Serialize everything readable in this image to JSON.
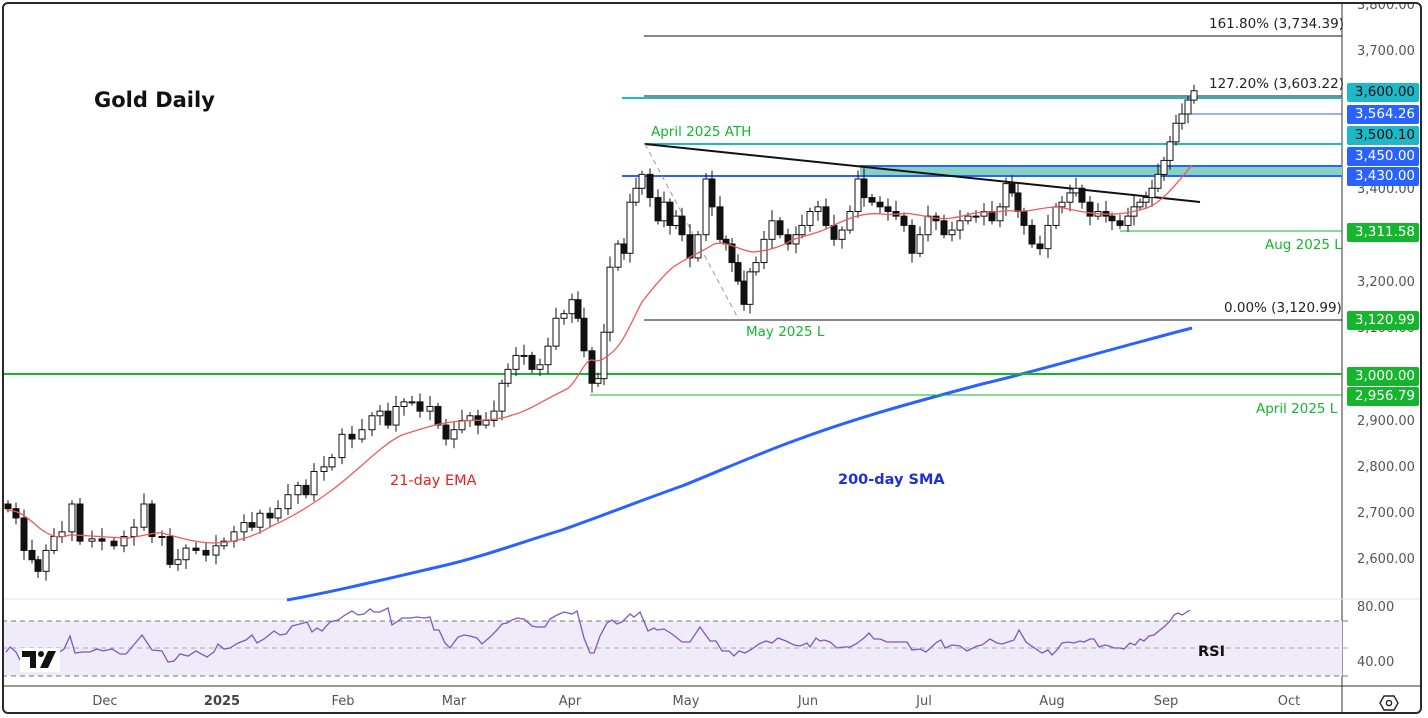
{
  "chart_data": {
    "type": "candlestick",
    "title": "Gold Daily",
    "instrument": "Gold",
    "timeframe": "Daily",
    "x_tick_labels": [
      "Dec",
      "2025",
      "Feb",
      "Mar",
      "Apr",
      "May",
      "Jun",
      "Jul",
      "Aug",
      "Sep",
      "Oct"
    ],
    "price_axis": {
      "ticks": [
        "3,800.00",
        "3,700.00",
        "3,400.00",
        "3,200.00",
        "3,100.00",
        "2,900.00",
        "2,800.00",
        "2,700.00",
        "2,600.00"
      ],
      "ylim": [
        2530,
        3800
      ]
    },
    "rsi_axis": {
      "ticks": [
        "80.00",
        "40.00"
      ],
      "levels": [
        70,
        50,
        30
      ]
    },
    "price_tags": [
      {
        "label": "3,600.00",
        "price": 3600.0,
        "color": "#1fb8c9",
        "text_color": "#111"
      },
      {
        "label": "3,564.26",
        "price": 3564.26,
        "color": "#2962ff",
        "text_color": "#fff"
      },
      {
        "label": "3,500.10",
        "price": 3500.1,
        "color": "#1fb8c9",
        "text_color": "#111"
      },
      {
        "label": "3,450.00",
        "price": 3450.0,
        "color": "#2962ff",
        "text_color": "#fff"
      },
      {
        "label": "3,430.00",
        "price": 3430.0,
        "color": "#2962ff",
        "text_color": "#fff"
      },
      {
        "label": "3,311.58",
        "price": 3311.58,
        "color": "#15b52e",
        "text_color": "#fff"
      },
      {
        "label": "3,120.99",
        "price": 3120.99,
        "color": "#15b52e",
        "text_color": "#fff"
      },
      {
        "label": "3,000.00",
        "price": 3000.0,
        "color": "#15b52e",
        "text_color": "#fff"
      },
      {
        "label": "2,956.79",
        "price": 2956.79,
        "color": "#15b52e",
        "text_color": "#fff"
      }
    ],
    "fibonacci": [
      {
        "label": "161.80% (3,734.39)",
        "level": 1.618,
        "price": 3734.39
      },
      {
        "label": "127.20% (3,603.22)",
        "level": 1.272,
        "price": 3603.22
      },
      {
        "label": "0.00% (3,120.99)",
        "level": 0.0,
        "price": 3120.99
      }
    ],
    "annotations": [
      {
        "text": "April 2025 ATH",
        "price": 3500.1,
        "color": "#15b52e"
      },
      {
        "text": "May 2025 L",
        "price": 3120.99,
        "color": "#15b52e"
      },
      {
        "text": "Aug 2025 L",
        "price": 3311.58,
        "color": "#15b52e"
      },
      {
        "text": "April 2025 L",
        "price": 2956.79,
        "color": "#15b52e"
      },
      {
        "text": "21-day EMA",
        "color": "#e8201e"
      },
      {
        "text": "200-day SMA",
        "color": "#1c2fd8"
      },
      {
        "text": "RSI",
        "color": "#111"
      }
    ],
    "resistance_zone": {
      "low": 3430.0,
      "high": 3450.0,
      "fill": "#88d0c0"
    },
    "trendline": {
      "from": {
        "date": "Apr 2025",
        "price": 3500
      },
      "to": {
        "date": "Sep 2025",
        "price": 3375
      },
      "color": "#111"
    },
    "series": [
      {
        "name": "21-day EMA",
        "color": "#f05a5a",
        "approx_path": [
          [
            "Nov",
            2700
          ],
          [
            "Dec",
            2650
          ],
          [
            "Jan",
            2630
          ],
          [
            "Feb",
            2770
          ],
          [
            "Mar",
            2880
          ],
          [
            "Apr",
            3030
          ],
          [
            "May",
            3250
          ],
          [
            "Jun",
            3330
          ],
          [
            "Jul",
            3340
          ],
          [
            "Aug",
            3350
          ],
          [
            "Sep",
            3450
          ]
        ]
      },
      {
        "name": "200-day SMA",
        "color": "#2962ff",
        "approx_path": [
          [
            "Jan",
            2520
          ],
          [
            "Feb",
            2590
          ],
          [
            "Mar",
            2650
          ],
          [
            "Apr",
            2720
          ],
          [
            "May",
            2800
          ],
          [
            "Jun",
            2870
          ],
          [
            "Jul",
            2940
          ],
          [
            "Aug",
            3010
          ],
          [
            "Sep",
            3090
          ]
        ]
      },
      {
        "name": "RSI",
        "color": "#7e57c2",
        "approx_path": [
          [
            "Nov",
            52
          ],
          [
            "Dec",
            45
          ],
          [
            "Jan",
            55
          ],
          [
            "Feb",
            78
          ],
          [
            "Mar",
            62
          ],
          [
            "Apr",
            75
          ],
          [
            "Apr-mid",
            42
          ],
          [
            "May",
            55
          ],
          [
            "Jun",
            52
          ],
          [
            "Jul",
            50
          ],
          [
            "Aug",
            44
          ],
          [
            "Sep",
            77
          ]
        ]
      }
    ],
    "last_price_approx": 3600,
    "grid": false,
    "legend_position": "none"
  },
  "labels": {
    "title": "Gold Daily",
    "april_ath": "April 2025 ATH",
    "may_low": "May 2025 L",
    "aug_low": "Aug 2025 L",
    "april_low": "April 2025 L",
    "ema": "21-day EMA",
    "sma": "200-day SMA",
    "rsi": "RSI",
    "fib_1618": "161.80% (3,734.39)",
    "fib_1272": "127.20% (3,603.22)",
    "fib_0": "0.00% (3,120.99)"
  },
  "axis": {
    "price": {
      "p3800": "3,800.00",
      "p3700": "3,700.00",
      "p3400": "3,400.00",
      "p3200": "3,200.00",
      "p3100": "3,100.00",
      "p2900": "2,900.00",
      "p2800": "2,800.00",
      "p2700": "2,700.00",
      "p2600": "2,600.00"
    },
    "rsi": {
      "r80": "80.00",
      "r40": "40.00"
    },
    "time": {
      "dec": "Dec",
      "y2025": "2025",
      "feb": "Feb",
      "mar": "Mar",
      "apr": "Apr",
      "may": "May",
      "jun": "Jun",
      "jul": "Jul",
      "aug": "Aug",
      "sep": "Sep",
      "oct": "Oct"
    }
  },
  "tags": {
    "t3600": "3,600.00",
    "t3564": "3,564.26",
    "t3500": "3,500.10",
    "t3450": "3,450.00",
    "t3430": "3,430.00",
    "t3311": "3,311.58",
    "t3120": "3,120.99",
    "t3000": "3,000.00",
    "t2956": "2,956.79"
  },
  "colors": {
    "cyan": "#1fb8c9",
    "blue": "#2962ff",
    "green": "#15b52e",
    "ema": "#f05a5a",
    "sma": "#2962ff",
    "rsi": "#7e57c2",
    "rsi_band": "#efebf8",
    "zone": "#88d0c0"
  },
  "icons": {
    "settings": "gear-hexagon-icon",
    "logo": "tradingview-logo"
  }
}
